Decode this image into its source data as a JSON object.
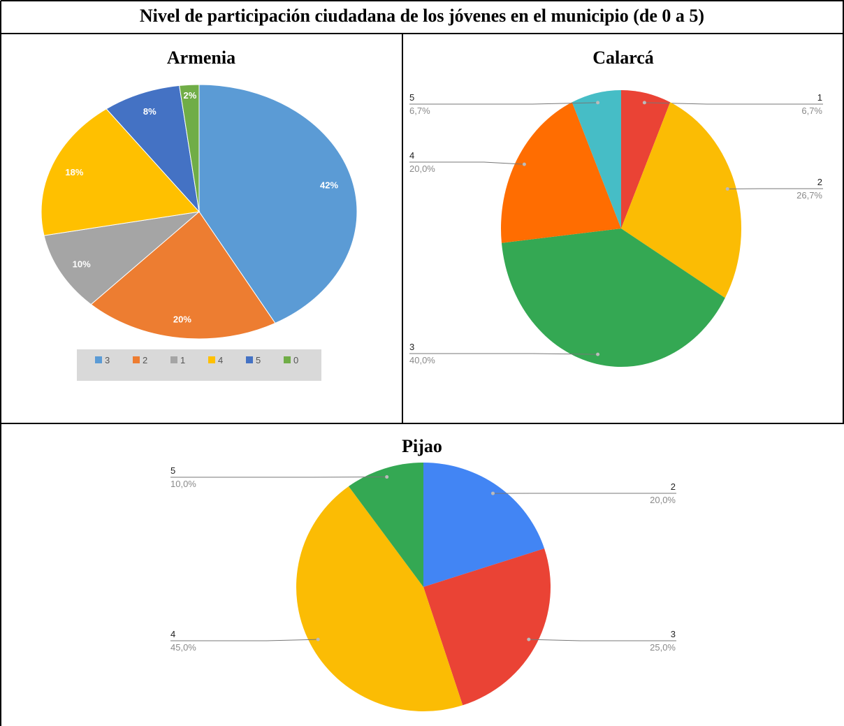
{
  "page": {
    "title": "Nivel de participación ciudadana de los jóvenes en el municipio (de 0 a 5)"
  },
  "colors": {
    "armenia": {
      "3": "#5B9BD5",
      "2": "#ED7D31",
      "1": "#A5A5A5",
      "4": "#FFC000",
      "5": "#4472C4",
      "0": "#70AD47"
    },
    "calarca": {
      "1": "#EA4335",
      "2": "#FBBC04",
      "3": "#34A853",
      "4": "#FF6D01",
      "5": "#46BDC6"
    },
    "pijao": {
      "2": "#4285F4",
      "3": "#EA4335",
      "4": "#FBBC04",
      "5": "#34A853"
    }
  },
  "chart_data": [
    {
      "type": "pie",
      "title": "Armenia",
      "categories": [
        "3",
        "2",
        "1",
        "4",
        "5",
        "0"
      ],
      "values": [
        42,
        20,
        10,
        18,
        8,
        2
      ],
      "labels": [
        "42%",
        "20%",
        "10%",
        "18%",
        "8%",
        "2%"
      ],
      "legend": [
        "3",
        "2",
        "1",
        "4",
        "5",
        "0"
      ],
      "legend_position": "bottom"
    },
    {
      "type": "pie",
      "title": "Calarcá",
      "categories": [
        "1",
        "2",
        "3",
        "4",
        "5"
      ],
      "values": [
        6.7,
        26.7,
        40.0,
        20.0,
        6.7
      ],
      "labels": [
        "6,7%",
        "26,7%",
        "40,0%",
        "20,0%",
        "6,7%"
      ]
    },
    {
      "type": "pie",
      "title": "Pijao",
      "categories": [
        "2",
        "3",
        "4",
        "5"
      ],
      "values": [
        20.0,
        25.0,
        45.0,
        10.0
      ],
      "labels": [
        "20,0%",
        "25,0%",
        "45,0%",
        "10,0%"
      ]
    }
  ]
}
